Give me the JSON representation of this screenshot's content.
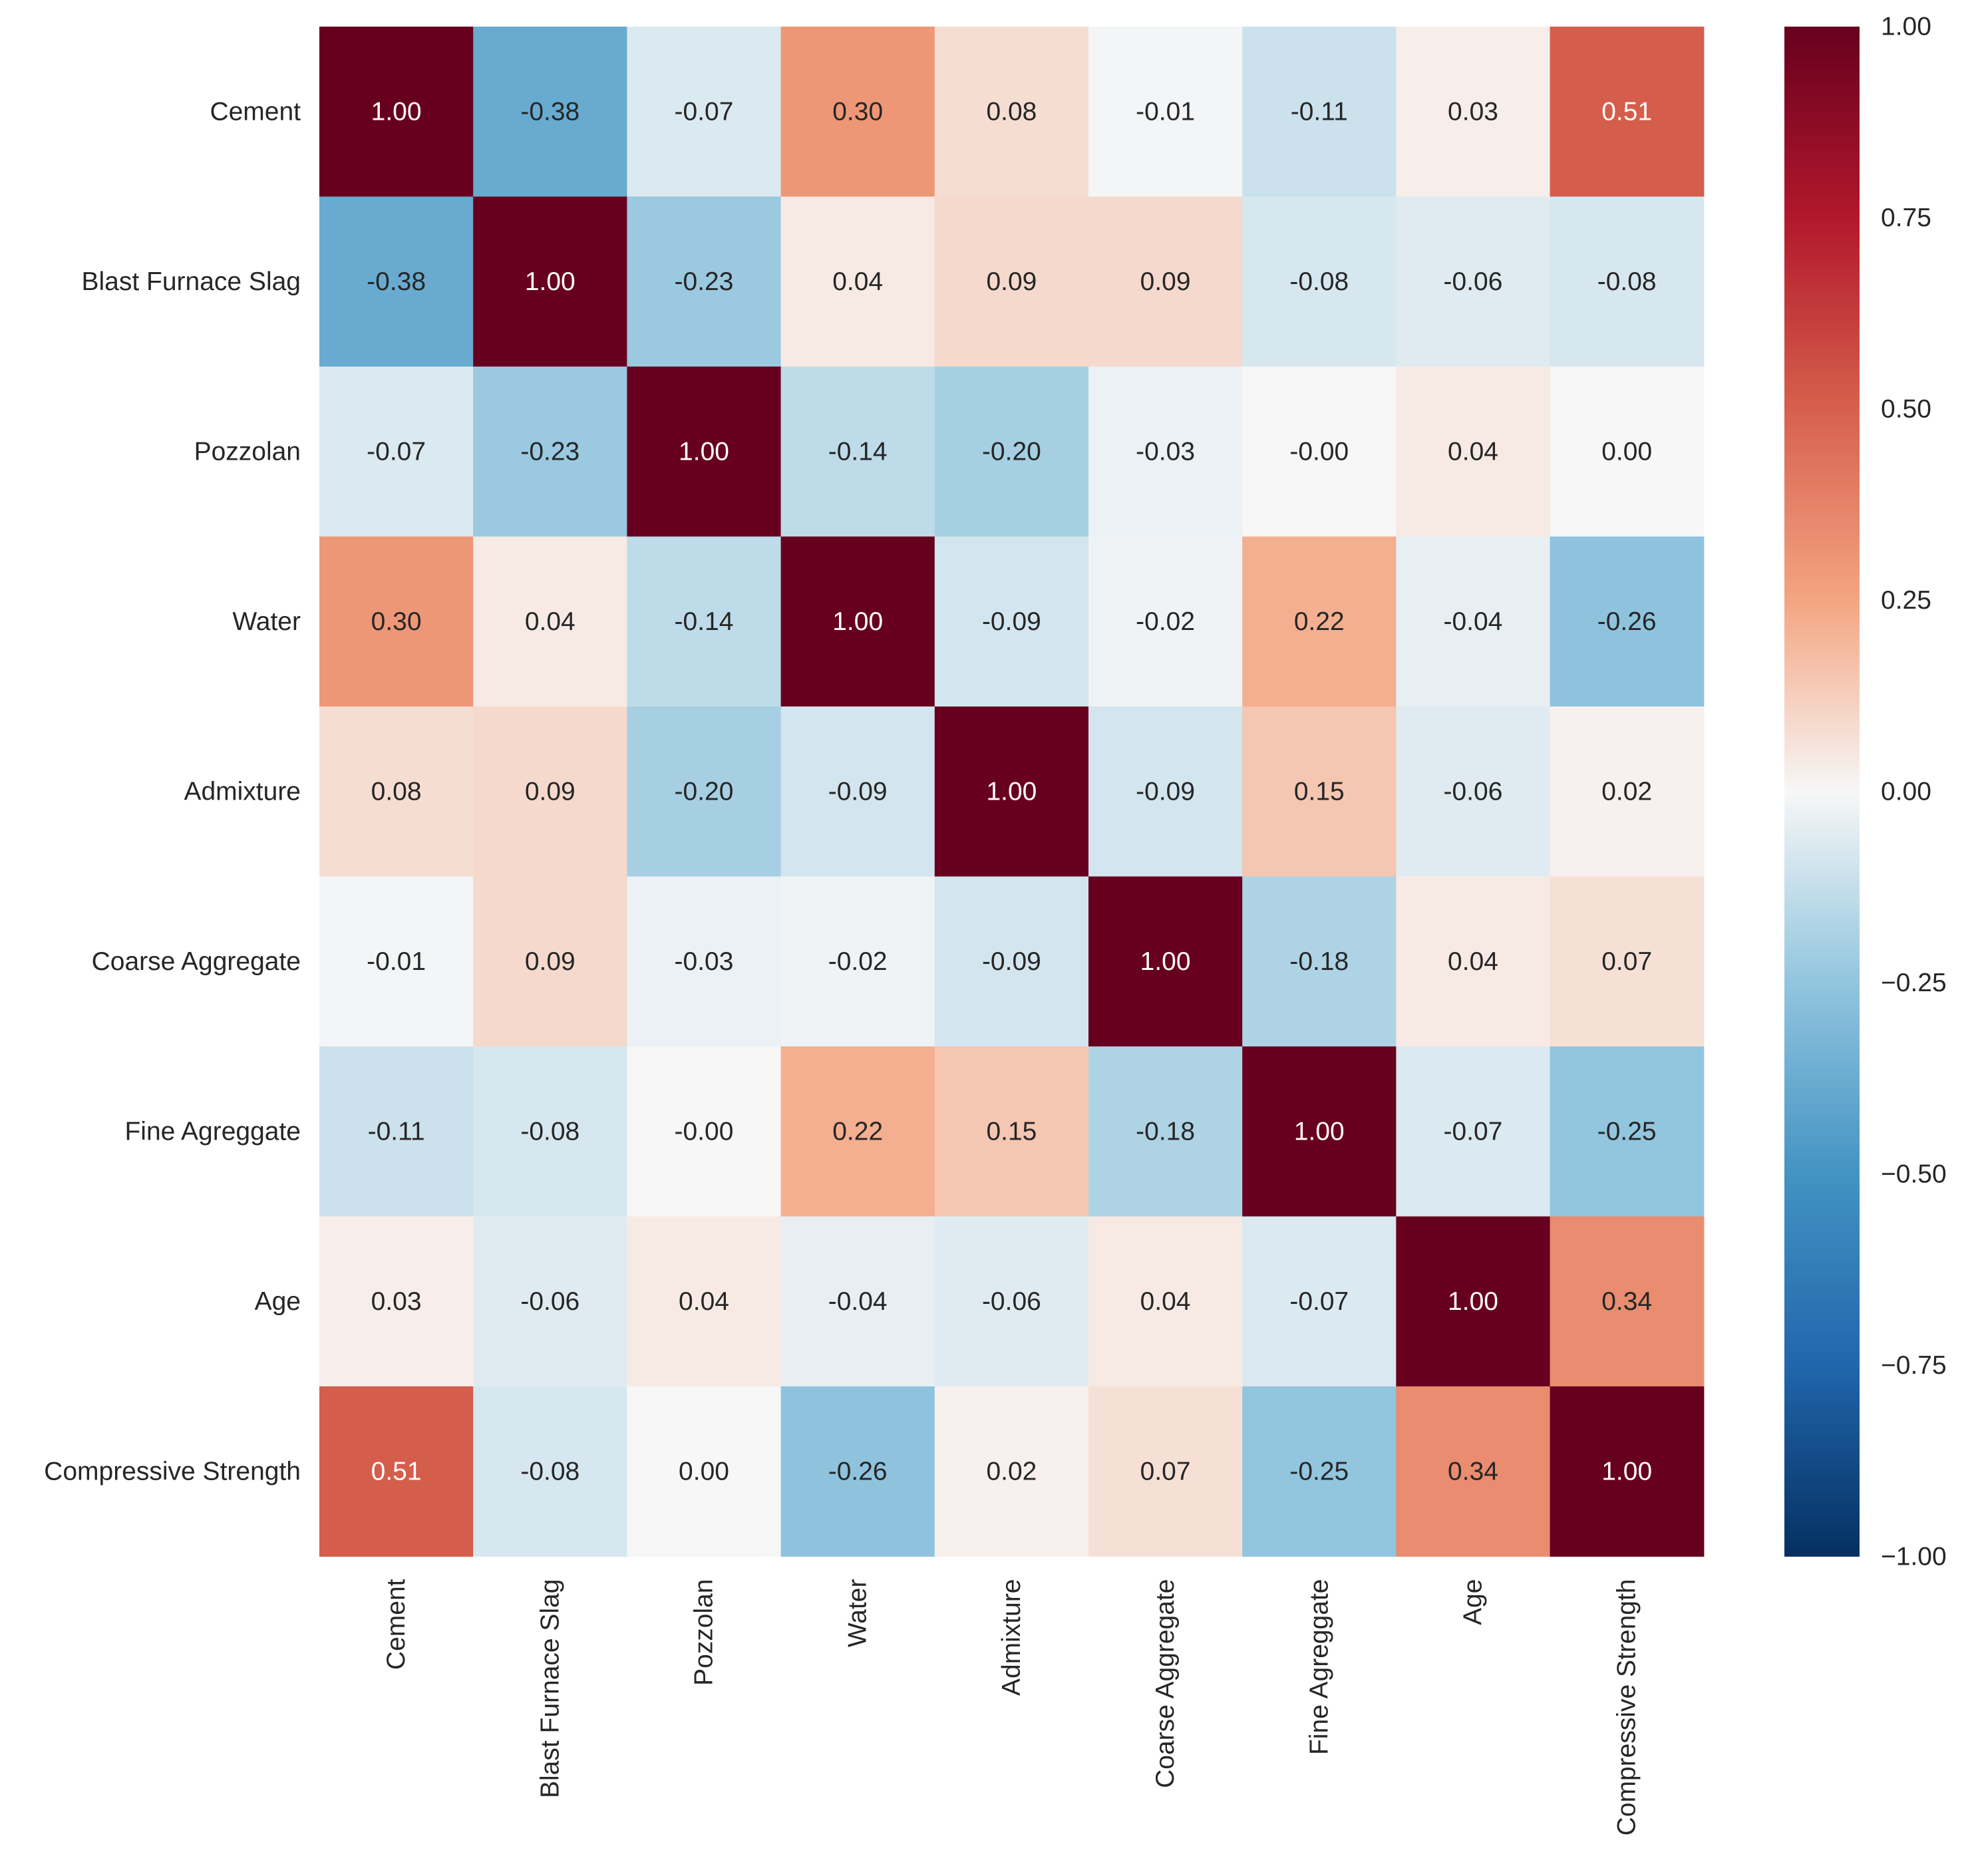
{
  "chart_data": {
    "type": "heatmap",
    "title": "",
    "xlabel": "",
    "ylabel": "",
    "labels": [
      "Cement",
      "Blast Furnace Slag",
      "Pozzolan",
      "Water",
      "Admixture",
      "Coarse Aggregate",
      "Fine Agreggate",
      "Age",
      "Compressive Strength"
    ],
    "matrix": [
      [
        1.0,
        -0.38,
        -0.07,
        0.3,
        0.08,
        -0.01,
        -0.11,
        0.03,
        0.51
      ],
      [
        -0.38,
        1.0,
        -0.23,
        0.04,
        0.09,
        0.09,
        -0.08,
        -0.06,
        -0.08
      ],
      [
        -0.07,
        -0.23,
        1.0,
        -0.14,
        -0.2,
        -0.03,
        -0.0,
        0.04,
        0.0
      ],
      [
        0.3,
        0.04,
        -0.14,
        1.0,
        -0.09,
        -0.02,
        0.22,
        -0.04,
        -0.26
      ],
      [
        0.08,
        0.09,
        -0.2,
        -0.09,
        1.0,
        -0.09,
        0.15,
        -0.06,
        0.02
      ],
      [
        -0.01,
        0.09,
        -0.03,
        -0.02,
        -0.09,
        1.0,
        -0.18,
        0.04,
        0.07
      ],
      [
        -0.11,
        -0.08,
        -0.0,
        0.22,
        0.15,
        -0.18,
        1.0,
        -0.07,
        -0.25
      ],
      [
        0.03,
        -0.06,
        0.04,
        -0.04,
        -0.06,
        0.04,
        -0.07,
        1.0,
        0.34
      ],
      [
        0.51,
        -0.08,
        0.0,
        -0.26,
        0.02,
        0.07,
        -0.25,
        0.34,
        1.0
      ]
    ],
    "value_format": "0.00",
    "colormap": "RdBu_r",
    "vmin": -1.0,
    "vmax": 1.0,
    "colorbar": {
      "ticks": [
        1.0,
        0.75,
        0.5,
        0.25,
        0.0,
        -0.25,
        -0.5,
        -0.75,
        -1.0
      ],
      "tick_labels": [
        "1.00",
        "0.75",
        "0.50",
        "0.25",
        "0.00",
        "−0.25",
        "−0.50",
        "−0.75",
        "−1.00"
      ]
    }
  }
}
